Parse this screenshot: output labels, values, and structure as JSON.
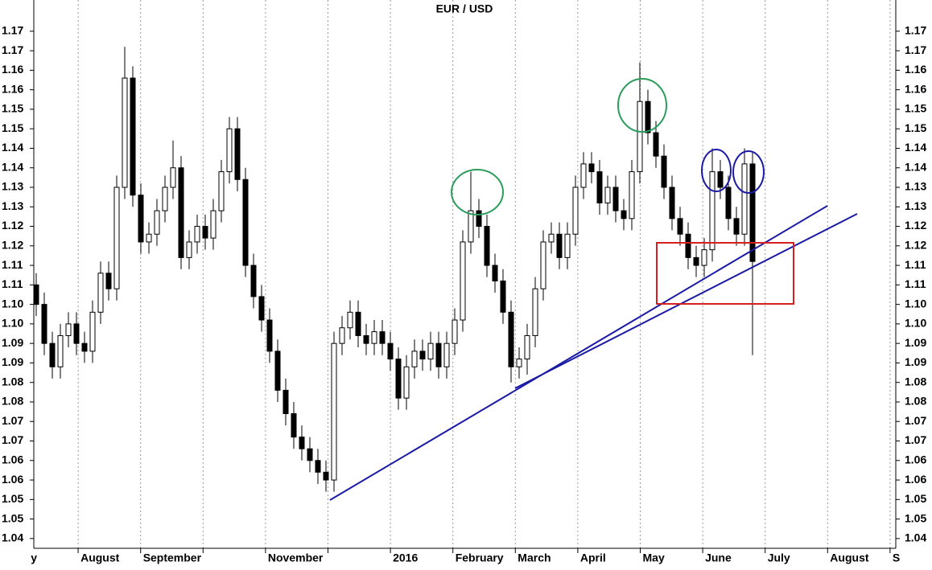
{
  "chart_data": {
    "type": "candlestick",
    "title": "EUR / USD",
    "months": [
      "y",
      "August",
      "September",
      null,
      "November",
      null,
      "2016",
      "February",
      "March",
      "April",
      "May",
      "June",
      "July",
      "August",
      "S"
    ],
    "ylim": [
      1.0375,
      1.178
    ],
    "yticks": [
      {
        "value": 1.17,
        "label": "1.17"
      },
      {
        "value": 1.165,
        "label": "1.17"
      },
      {
        "value": 1.16,
        "label": "1.16"
      },
      {
        "value": 1.155,
        "label": "1.16"
      },
      {
        "value": 1.15,
        "label": "1.15"
      },
      {
        "value": 1.145,
        "label": "1.15"
      },
      {
        "value": 1.14,
        "label": "1.14"
      },
      {
        "value": 1.135,
        "label": "1.14"
      },
      {
        "value": 1.13,
        "label": "1.13"
      },
      {
        "value": 1.125,
        "label": "1.13"
      },
      {
        "value": 1.12,
        "label": "1.12"
      },
      {
        "value": 1.115,
        "label": "1.12"
      },
      {
        "value": 1.11,
        "label": "1.11"
      },
      {
        "value": 1.105,
        "label": "1.11"
      },
      {
        "value": 1.1,
        "label": "1.10"
      },
      {
        "value": 1.095,
        "label": "1.10"
      },
      {
        "value": 1.09,
        "label": "1.09"
      },
      {
        "value": 1.085,
        "label": "1.09"
      },
      {
        "value": 1.08,
        "label": "1.08"
      },
      {
        "value": 1.075,
        "label": "1.08"
      },
      {
        "value": 1.07,
        "label": "1.07"
      },
      {
        "value": 1.065,
        "label": "1.07"
      },
      {
        "value": 1.06,
        "label": "1.06"
      },
      {
        "value": 1.055,
        "label": "1.06"
      },
      {
        "value": 1.05,
        "label": "1.05"
      },
      {
        "value": 1.045,
        "label": "1.05"
      },
      {
        "value": 1.04,
        "label": "1.04"
      }
    ],
    "up_color": "#ffffff",
    "down_color": "#000000",
    "open": [
      1.105,
      1.1,
      1.09,
      1.084,
      1.092,
      1.095,
      1.09,
      1.088,
      1.098,
      1.108,
      1.104,
      1.13,
      1.158,
      1.128,
      1.116,
      1.118,
      1.124,
      1.13,
      1.135,
      1.112,
      1.116,
      1.12,
      1.117,
      1.124,
      1.134,
      1.145,
      1.132,
      1.11,
      1.102,
      1.096,
      1.088,
      1.078,
      1.072,
      1.066,
      1.063,
      1.06,
      1.057,
      1.055,
      1.09,
      1.094,
      1.098,
      1.092,
      1.09,
      1.093,
      1.09,
      1.086,
      1.076,
      1.084,
      1.088,
      1.086,
      1.09,
      1.084,
      1.09,
      1.096,
      1.116,
      1.124,
      1.12,
      1.11,
      1.106,
      1.098,
      1.084,
      1.086,
      1.092,
      1.104,
      1.116,
      1.118,
      1.112,
      1.118,
      1.13,
      1.136,
      1.134,
      1.126,
      1.13,
      1.124,
      1.122,
      1.134,
      1.152,
      1.144,
      1.138,
      1.13,
      1.122,
      1.118,
      1.112,
      1.11,
      1.114,
      1.134,
      1.13,
      1.122,
      1.118,
      1.136
    ],
    "high": [
      1.108,
      1.103,
      1.093,
      1.095,
      1.098,
      1.098,
      1.093,
      1.101,
      1.111,
      1.111,
      1.133,
      1.166,
      1.161,
      1.131,
      1.121,
      1.127,
      1.133,
      1.142,
      1.138,
      1.119,
      1.123,
      1.123,
      1.127,
      1.137,
      1.148,
      1.148,
      1.135,
      1.113,
      1.105,
      1.099,
      1.091,
      1.081,
      1.075,
      1.069,
      1.066,
      1.063,
      1.06,
      1.093,
      1.097,
      1.101,
      1.101,
      1.095,
      1.096,
      1.096,
      1.093,
      1.089,
      1.087,
      1.091,
      1.091,
      1.093,
      1.093,
      1.093,
      1.099,
      1.119,
      1.134,
      1.127,
      1.123,
      1.113,
      1.109,
      1.101,
      1.089,
      1.095,
      1.107,
      1.119,
      1.121,
      1.121,
      1.121,
      1.133,
      1.139,
      1.139,
      1.137,
      1.133,
      1.133,
      1.127,
      1.137,
      1.162,
      1.155,
      1.147,
      1.141,
      1.133,
      1.125,
      1.121,
      1.115,
      1.117,
      1.14,
      1.137,
      1.133,
      1.125,
      1.14,
      1.139
    ],
    "low": [
      1.097,
      1.087,
      1.081,
      1.081,
      1.089,
      1.087,
      1.085,
      1.085,
      1.095,
      1.101,
      1.101,
      1.127,
      1.125,
      1.113,
      1.113,
      1.115,
      1.121,
      1.127,
      1.109,
      1.109,
      1.113,
      1.114,
      1.114,
      1.121,
      1.131,
      1.129,
      1.107,
      1.099,
      1.093,
      1.085,
      1.075,
      1.069,
      1.063,
      1.06,
      1.057,
      1.054,
      1.052,
      1.052,
      1.087,
      1.091,
      1.089,
      1.087,
      1.087,
      1.087,
      1.083,
      1.073,
      1.073,
      1.081,
      1.083,
      1.083,
      1.081,
      1.081,
      1.087,
      1.093,
      1.113,
      1.117,
      1.107,
      1.103,
      1.095,
      1.08,
      1.081,
      1.082,
      1.089,
      1.101,
      1.113,
      1.109,
      1.109,
      1.115,
      1.127,
      1.131,
      1.123,
      1.123,
      1.121,
      1.119,
      1.119,
      1.131,
      1.141,
      1.135,
      1.127,
      1.119,
      1.115,
      1.109,
      1.107,
      1.107,
      1.111,
      1.127,
      1.119,
      1.115,
      1.115,
      1.087
    ],
    "close": [
      1.1,
      1.09,
      1.084,
      1.092,
      1.095,
      1.09,
      1.088,
      1.098,
      1.108,
      1.104,
      1.13,
      1.158,
      1.128,
      1.116,
      1.118,
      1.124,
      1.13,
      1.135,
      1.112,
      1.116,
      1.12,
      1.117,
      1.124,
      1.134,
      1.145,
      1.132,
      1.11,
      1.102,
      1.096,
      1.088,
      1.078,
      1.072,
      1.066,
      1.063,
      1.06,
      1.057,
      1.055,
      1.09,
      1.094,
      1.098,
      1.092,
      1.09,
      1.093,
      1.09,
      1.086,
      1.076,
      1.084,
      1.088,
      1.086,
      1.09,
      1.084,
      1.09,
      1.096,
      1.116,
      1.124,
      1.12,
      1.11,
      1.106,
      1.098,
      1.084,
      1.086,
      1.092,
      1.104,
      1.116,
      1.118,
      1.112,
      1.118,
      1.13,
      1.136,
      1.134,
      1.126,
      1.13,
      1.124,
      1.122,
      1.134,
      1.152,
      1.144,
      1.138,
      1.13,
      1.122,
      1.118,
      1.112,
      1.11,
      1.114,
      1.134,
      1.13,
      1.122,
      1.118,
      1.136,
      1.111
    ]
  }
}
